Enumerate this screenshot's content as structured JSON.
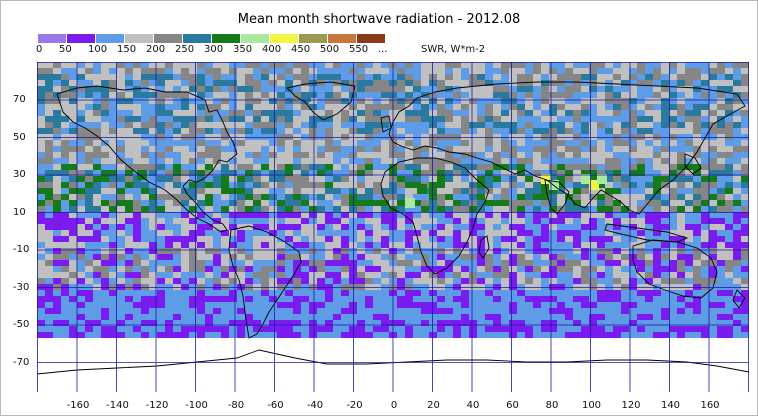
{
  "title": "Mean month shortwave radiation - 2012.08",
  "units_label": "SWR, W*m-2",
  "legend": {
    "ticks": [
      "0",
      "50",
      "100",
      "150",
      "200",
      "250",
      "300",
      "350",
      "400",
      "450",
      "500",
      "550",
      "..."
    ],
    "colors": [
      "#9a78e8",
      "#7a1cf0",
      "#5e9ce8",
      "#c0c0c0",
      "#868686",
      "#2a7aa0",
      "#157a1a",
      "#a8e8a0",
      "#f4f444",
      "#9a9a50",
      "#c8763c",
      "#8a3c18"
    ]
  },
  "map": {
    "lat_labels": [
      "70",
      "50",
      "30",
      "10",
      "-10",
      "-30",
      "-50",
      "-70"
    ],
    "lon_labels": [
      "-160",
      "-140",
      "-120",
      "-100",
      "-80",
      "-60",
      "-40",
      "-20",
      "0",
      "20",
      "40",
      "60",
      "80",
      "100",
      "120",
      "140",
      "160"
    ],
    "grid_color": "#1a1aa0",
    "coast_color": "#000000"
  }
}
